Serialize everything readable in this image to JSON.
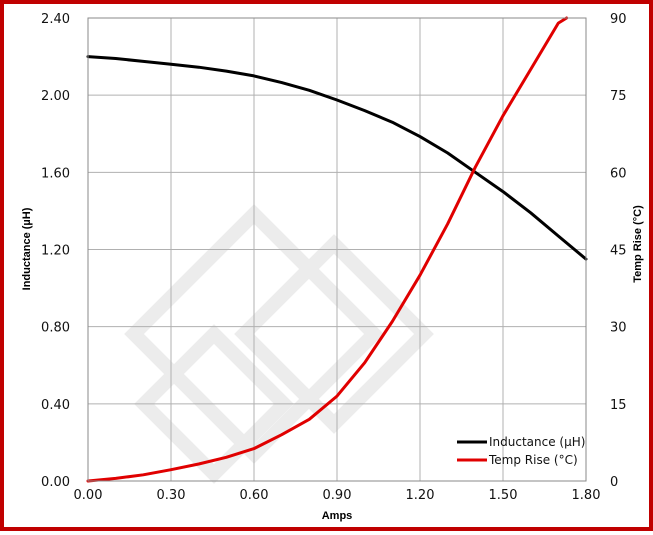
{
  "chart_data": {
    "type": "line",
    "xlabel": "Amps",
    "ylabel_left": "Inductance (µH)",
    "ylabel_right": "Temp Rise (°C)",
    "xlim": [
      0,
      1.8
    ],
    "ylim_left": [
      0,
      2.4
    ],
    "ylim_right": [
      0,
      90
    ],
    "x_ticks": [
      "0.00",
      "0.30",
      "0.60",
      "0.90",
      "1.20",
      "1.50",
      "1.80"
    ],
    "y_left_ticks": [
      "0.00",
      "0.40",
      "0.80",
      "1.20",
      "1.60",
      "2.00",
      "2.40"
    ],
    "y_right_ticks": [
      "0",
      "15",
      "30",
      "45",
      "60",
      "75",
      "90"
    ],
    "grid": true,
    "legend_position": "bottom-right",
    "colors": {
      "inductance": "#000000",
      "temp_rise": "#e00000",
      "border": "#c00000",
      "grid": "#b0b0b0"
    },
    "series": [
      {
        "name": "Inductance (µH)",
        "axis": "left",
        "x": [
          0.0,
          0.1,
          0.2,
          0.3,
          0.4,
          0.5,
          0.6,
          0.7,
          0.8,
          0.9,
          1.0,
          1.1,
          1.2,
          1.3,
          1.4,
          1.5,
          1.6,
          1.7,
          1.8
        ],
        "y": [
          2.2,
          2.19,
          2.175,
          2.16,
          2.145,
          2.125,
          2.1,
          2.065,
          2.025,
          1.975,
          1.92,
          1.86,
          1.785,
          1.7,
          1.6,
          1.5,
          1.39,
          1.27,
          1.15
        ]
      },
      {
        "name": "Temp Rise (°C)",
        "axis": "right",
        "x": [
          0.0,
          0.1,
          0.2,
          0.3,
          0.4,
          0.5,
          0.6,
          0.7,
          0.8,
          0.9,
          1.0,
          1.1,
          1.2,
          1.3,
          1.4,
          1.5,
          1.6,
          1.7,
          1.73
        ],
        "y": [
          0,
          0.5,
          1.2,
          2.2,
          3.3,
          4.6,
          6.3,
          9.0,
          12.0,
          16.5,
          23.0,
          31.0,
          40.0,
          50.0,
          61.0,
          71.0,
          80.0,
          89.0,
          90.0
        ]
      }
    ]
  }
}
